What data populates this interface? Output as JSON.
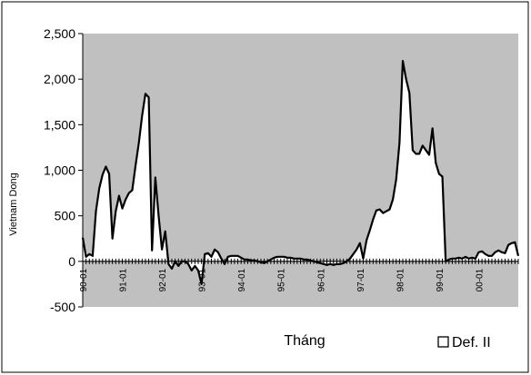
{
  "chart_data": {
    "type": "area",
    "xlabel": "Tháng",
    "ylabel": "Vietnam Dong",
    "ylim": [
      -500,
      2500
    ],
    "yticks": [
      "-500",
      "0",
      "500",
      "1,000",
      "1,500",
      "2,000",
      "2,500"
    ],
    "ytick_values": [
      -500,
      0,
      500,
      1000,
      1500,
      2000,
      2500
    ],
    "xticks": [
      "90-01",
      "91-01",
      "92-01",
      "93-01",
      "94-01",
      "95-01",
      "96-01",
      "97-01",
      "98-01",
      "99-01",
      "00-01"
    ],
    "x_start": "90-01",
    "x_end": "00-12",
    "grid": false,
    "legend_position": "bottom-right",
    "colors": {
      "plot_bg": "#c0c0c0",
      "fill": "#ffffff",
      "line": "#000000"
    },
    "series": [
      {
        "name": "Def. II",
        "values": [
          260,
          50,
          80,
          60,
          550,
          800,
          950,
          1040,
          960,
          250,
          550,
          720,
          580,
          680,
          750,
          780,
          1050,
          1300,
          1600,
          1840,
          1800,
          120,
          920,
          500,
          130,
          330,
          -30,
          -80,
          0,
          -50,
          0,
          0,
          -30,
          -100,
          -50,
          -100,
          -250,
          80,
          90,
          50,
          130,
          100,
          30,
          -30,
          50,
          60,
          60,
          60,
          40,
          20,
          20,
          10,
          10,
          0,
          -10,
          -20,
          0,
          20,
          40,
          50,
          50,
          50,
          40,
          40,
          30,
          30,
          30,
          20,
          20,
          10,
          0,
          -10,
          -20,
          -30,
          -40,
          -30,
          -40,
          -30,
          -30,
          -20,
          0,
          30,
          80,
          130,
          200,
          30,
          230,
          340,
          460,
          560,
          570,
          530,
          550,
          570,
          680,
          900,
          1300,
          2200,
          2000,
          1850,
          1220,
          1180,
          1180,
          1270,
          1220,
          1170,
          1460,
          1080,
          960,
          930,
          0,
          20,
          30,
          30,
          40,
          30,
          50,
          30,
          40,
          30,
          100,
          110,
          80,
          60,
          60,
          100,
          120,
          100,
          90,
          180,
          200,
          210,
          60
        ]
      }
    ]
  }
}
